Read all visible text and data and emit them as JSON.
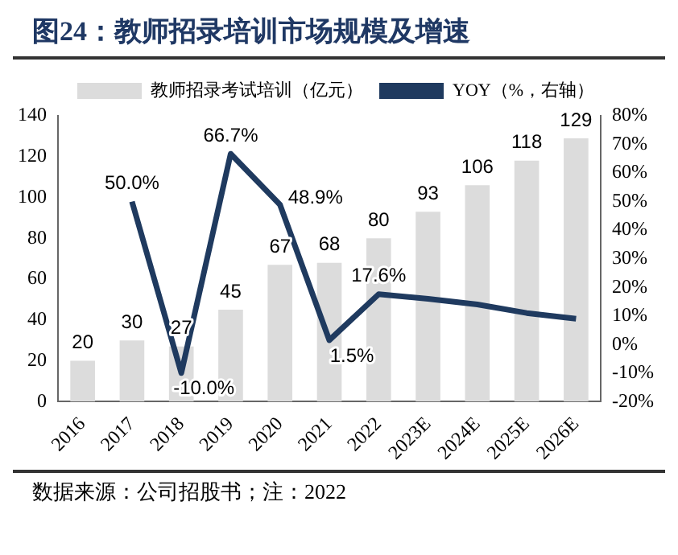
{
  "chart_data": {
    "type": "bar",
    "title": "图24：教师招录培训市场规模及增速",
    "categories": [
      "2016",
      "2017",
      "2018",
      "2019",
      "2020",
      "2021",
      "2022",
      "2023E",
      "2024E",
      "2025E",
      "2026E"
    ],
    "series": [
      {
        "name": "教师招录考试培训（亿元）",
        "color": "#dcdcdc",
        "values": [
          20,
          30,
          27,
          45,
          67,
          68,
          80,
          93,
          106,
          118,
          129
        ],
        "value_labels": [
          "20",
          "30",
          "27",
          "45",
          "67",
          "68",
          "80",
          "93",
          "106",
          "118",
          "129"
        ]
      },
      {
        "name": "YOY（%，右轴）",
        "type": "line",
        "axis": "y2",
        "color": "#1f3a5f",
        "values": [
          null,
          50.0,
          -10.0,
          66.7,
          48.9,
          1.5,
          17.6,
          16,
          14,
          11,
          9
        ],
        "value_labels": [
          null,
          "50.0%",
          "-10.0%",
          "66.7%",
          "48.9%",
          "1.5%",
          "17.6%",
          null,
          null,
          null,
          null
        ]
      }
    ],
    "ylim": [
      0,
      140
    ],
    "yticks": [
      0,
      20,
      40,
      60,
      80,
      100,
      120,
      140
    ],
    "y2lim": [
      -20,
      80
    ],
    "y2ticks": [
      {
        "value": -20,
        "label": "-20%"
      },
      {
        "value": -10,
        "label": "-10%"
      },
      {
        "value": 0,
        "label": "0%"
      },
      {
        "value": 10,
        "label": "10%"
      },
      {
        "value": 20,
        "label": "20%"
      },
      {
        "value": 30,
        "label": "30%"
      },
      {
        "value": 40,
        "label": "40%"
      },
      {
        "value": 50,
        "label": "50%"
      },
      {
        "value": 60,
        "label": "60%"
      },
      {
        "value": 70,
        "label": "70%"
      },
      {
        "value": 80,
        "label": "80%"
      }
    ],
    "legend": "top",
    "grid": false,
    "marker": "none",
    "annotations": [
      "数据来源：公司招股书；注：2022"
    ]
  }
}
